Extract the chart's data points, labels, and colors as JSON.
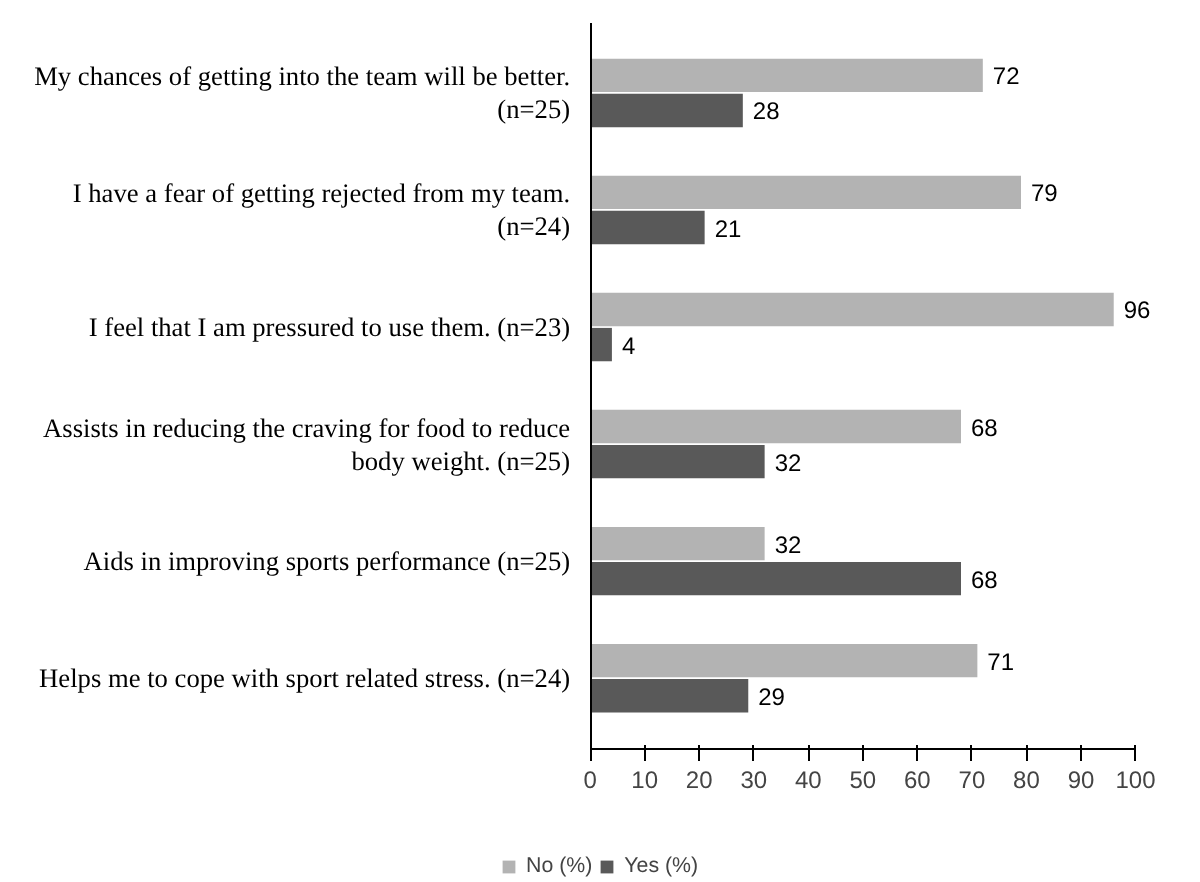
{
  "chart_data": {
    "type": "bar",
    "orientation": "horizontal",
    "categories": [
      "My chances of getting into the team will be better. (n=25)",
      "I have a fear of getting rejected from my team. (n=24)",
      "I feel that I am pressured to use them. (n=23)",
      "Assists in reducing the craving for food to reduce body weight. (n=25)",
      "Aids in improving sports performance (n=25)",
      "Helps me to cope with sport related stress. (n=24)"
    ],
    "series": [
      {
        "name": "No (%)",
        "color": "#b3b3b3",
        "values": [
          72,
          79,
          96,
          68,
          32,
          71
        ]
      },
      {
        "name": "Yes (%)",
        "color": "#595959",
        "values": [
          28,
          21,
          4,
          32,
          68,
          29
        ]
      }
    ],
    "xlim": [
      0,
      100
    ],
    "xticks": [
      0,
      10,
      20,
      30,
      40,
      50,
      60,
      70,
      80,
      90,
      100
    ],
    "data_labels": true,
    "legend": "bottom",
    "grid": false
  }
}
